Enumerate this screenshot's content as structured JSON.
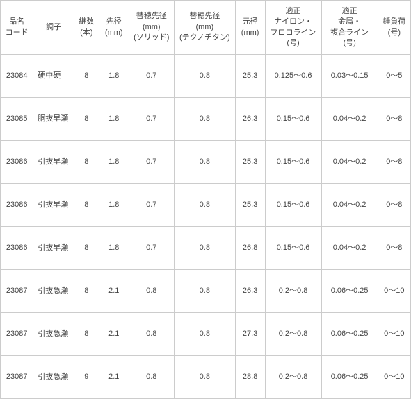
{
  "table": {
    "headers": [
      "品名\nコード",
      "調子",
      "継数\n(本)",
      "先径\n(mm)",
      "替穂先径\n(mm)\n(ソリッド)",
      "替穂先径\n(mm)\n(テクノチタン)",
      "元径\n(mm)",
      "適正\nナイロン・\nフロロライン\n(号)",
      "適正\n金属・\n複合ライン\n(号)",
      "錘負荷\n(号)"
    ],
    "rows": [
      [
        "23084",
        "硬中硬",
        "8",
        "1.8",
        "0.7",
        "0.8",
        "25.3",
        "0.125～0.6",
        "0.03～0.15",
        "0～5"
      ],
      [
        "23085",
        "胴抜早瀬",
        "8",
        "1.8",
        "0.7",
        "0.8",
        "26.3",
        "0.15～0.6",
        "0.04～0.2",
        "0～8"
      ],
      [
        "23086",
        "引抜早瀬",
        "8",
        "1.8",
        "0.7",
        "0.8",
        "25.3",
        "0.15～0.6",
        "0.04～0.2",
        "0～8"
      ],
      [
        "23086",
        "引抜早瀬",
        "8",
        "1.8",
        "0.7",
        "0.8",
        "25.3",
        "0.15～0.6",
        "0.04～0.2",
        "0～8"
      ],
      [
        "23086",
        "引抜早瀬",
        "8",
        "1.8",
        "0.7",
        "0.8",
        "26.8",
        "0.15～0.6",
        "0.04～0.2",
        "0～8"
      ],
      [
        "23087",
        "引抜急瀬",
        "8",
        "2.1",
        "0.8",
        "0.8",
        "26.3",
        "0.2～0.8",
        "0.06～0.25",
        "0～10"
      ],
      [
        "23087",
        "引抜急瀬",
        "8",
        "2.1",
        "0.8",
        "0.8",
        "27.3",
        "0.2～0.8",
        "0.06～0.25",
        "0～10"
      ],
      [
        "23087",
        "引抜急瀬",
        "9",
        "2.1",
        "0.8",
        "0.8",
        "28.8",
        "0.2～0.8",
        "0.06～0.25",
        "0～10"
      ]
    ],
    "col_classes": [
      "col-code",
      "col-tone",
      "col-pieces",
      "col-tip",
      "col-solid",
      "col-techno",
      "col-base",
      "col-nylon",
      "col-metal",
      "col-weight"
    ]
  }
}
